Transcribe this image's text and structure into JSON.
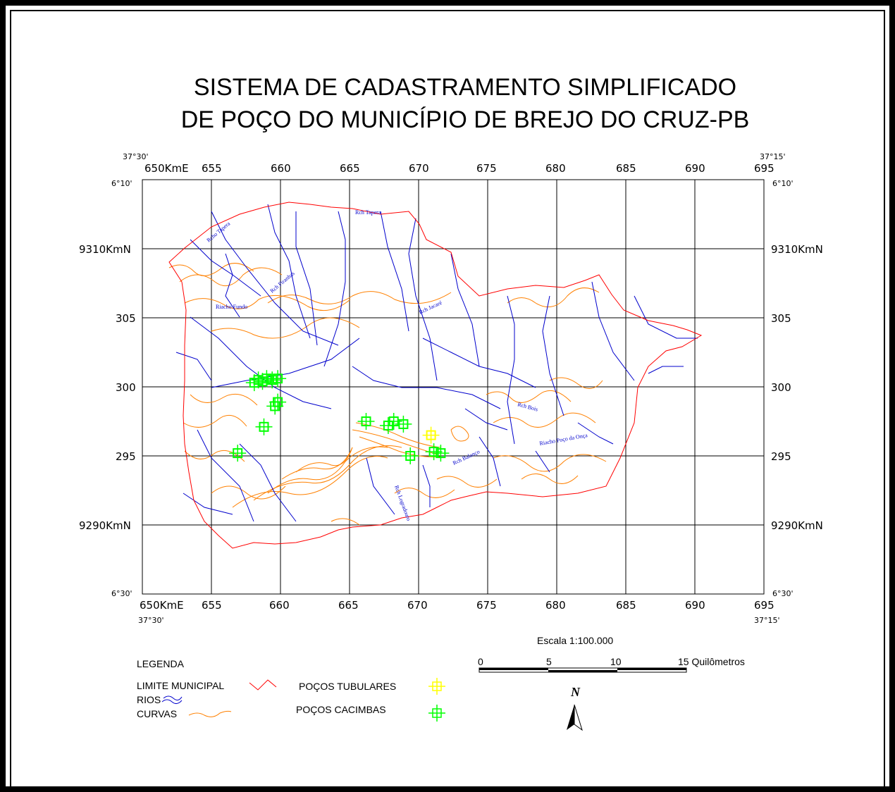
{
  "title": {
    "line1": "SISTEMA DE CADASTRAMENTO SIMPLIFICADO",
    "line2": "DE POÇO DO MUNICÍPIO DE BREJO DO CRUZ-PB"
  },
  "grid": {
    "easting_top": [
      "650KmE",
      "655",
      "660",
      "665",
      "670",
      "675",
      "680",
      "685",
      "690",
      "695"
    ],
    "easting_bottom": [
      "650KmE",
      "655",
      "660",
      "665",
      "670",
      "675",
      "680",
      "685",
      "690",
      "695"
    ],
    "northing_left": [
      "9310KmN",
      "305",
      "300",
      "295",
      "9290KmN"
    ],
    "northing_right": [
      "9310KmN",
      "305",
      "300",
      "295",
      "9290KmN"
    ],
    "corner_top_left_lon": "37°30'",
    "corner_top_right_lon": "37°15'",
    "corner_bottom_left_lon": "37°30'",
    "corner_bottom_right_lon": "37°15'",
    "corner_top_left_lat": "6°10'",
    "corner_top_right_lat": "6°10'",
    "corner_bottom_left_lat": "6°30'",
    "corner_bottom_right_lat": "6°30'"
  },
  "river_labels": [
    "Rch Tapera",
    "Rcho Tapera",
    "Riacho Fundo",
    "Rch Piranhas",
    "Rch Jacaré",
    "Rch Bois",
    "Riacho Poço da Onça",
    "Rch Balanço",
    "Rch Logradouro"
  ],
  "scale": {
    "title": "Escala  1:100.000",
    "ticks": [
      "0",
      "5",
      "10",
      "15 Quilômetros"
    ]
  },
  "legend": {
    "heading": "LEGENDA",
    "items": [
      {
        "label": "LIMITE MUNICIPAL",
        "color": "#ff0000"
      },
      {
        "label": "RIOS",
        "color": "#0000cc"
      },
      {
        "label": "CURVAS",
        "color": "#ff8000"
      },
      {
        "label": "POÇOS TUBULARES",
        "color": "#ffff00"
      },
      {
        "label": "POÇOS CACIMBAS",
        "color": "#00ff00"
      }
    ]
  },
  "north_arrow": "N",
  "colors": {
    "boundary": "#ff0000",
    "rivers": "#0000cc",
    "contours": "#ff8000",
    "wells_tubular": "#ffff00",
    "wells_cacimba": "#00ff00"
  },
  "wells": {
    "cacimbas": [
      {
        "e": 658.1,
        "n": 300.3
      },
      {
        "e": 658.4,
        "n": 300.5
      },
      {
        "e": 658.7,
        "n": 300.4
      },
      {
        "e": 659.0,
        "n": 300.6
      },
      {
        "e": 659.4,
        "n": 300.5
      },
      {
        "e": 659.8,
        "n": 300.6
      },
      {
        "e": 659.6,
        "n": 298.6
      },
      {
        "e": 659.8,
        "n": 298.9
      },
      {
        "e": 658.8,
        "n": 297.1
      },
      {
        "e": 656.9,
        "n": 295.2
      },
      {
        "e": 666.2,
        "n": 297.5
      },
      {
        "e": 667.8,
        "n": 297.2
      },
      {
        "e": 668.2,
        "n": 297.5
      },
      {
        "e": 668.9,
        "n": 297.3
      },
      {
        "e": 669.4,
        "n": 295.0
      },
      {
        "e": 671.1,
        "n": 295.3
      },
      {
        "e": 671.6,
        "n": 295.2
      }
    ],
    "tubulares": [
      {
        "e": 670.9,
        "n": 296.5
      }
    ]
  }
}
